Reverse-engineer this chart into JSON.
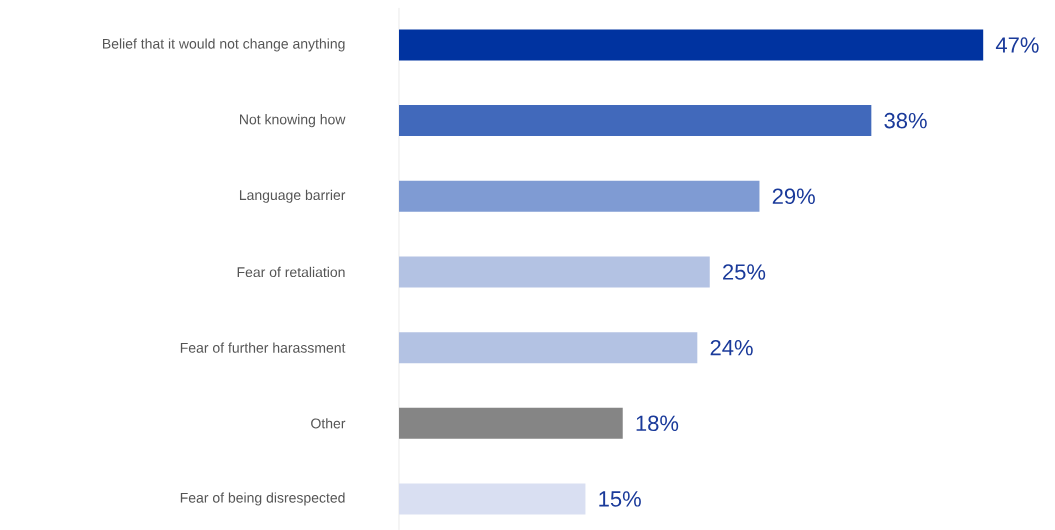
{
  "chart_data": {
    "type": "bar",
    "orientation": "horizontal",
    "categories": [
      "Belief that it would not change anything",
      "Not knowing how",
      "Language barrier",
      "Fear of retaliation",
      "Fear of further harassment",
      "Other",
      "Fear of being disrespected"
    ],
    "values": [
      47,
      38,
      29,
      25,
      24,
      18,
      15
    ],
    "value_labels": [
      "47%",
      "38%",
      "29%",
      "25%",
      "24%",
      "18%",
      "15%"
    ],
    "colors": [
      "#0033a0",
      "#4169bb",
      "#7f9bd3",
      "#b3c2e3",
      "#b3c2e3",
      "#858585",
      "#d9dff2"
    ]
  }
}
